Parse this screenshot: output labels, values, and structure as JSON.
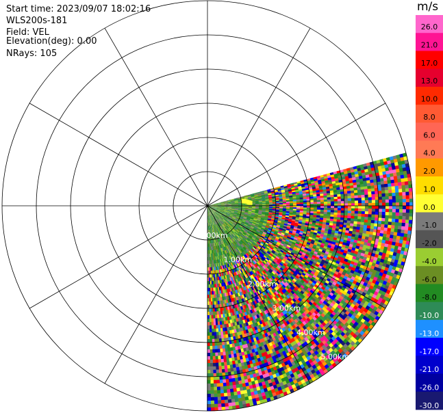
{
  "info": {
    "start_time": "Start time: 2023/09/07 18:02:16",
    "instrument": "WLS200s-181",
    "field": "Field: VEL",
    "elevation": "Elevation(deg): 0.00",
    "nrays": "NRays: 105"
  },
  "chart_data": {
    "type": "heatmap",
    "projection": "polar-ppi",
    "field": "VEL",
    "unit": "m/s",
    "colorbar_title": "m/s",
    "range_rings_km": [
      1,
      2,
      3,
      4,
      5,
      6
    ],
    "range_labels": [
      "0.00km",
      "1.00km",
      "2.00km",
      "3.00km",
      "4.00km",
      "5.00km"
    ],
    "scan_azimuth_start_deg": 90,
    "scan_azimuth_end_deg": 180,
    "nrays": 105,
    "max_range_km": 6,
    "colorbar": {
      "ticks": [
        "26.0",
        "21.0",
        "17.0",
        "13.0",
        "10.0",
        "8.0",
        "6.0",
        "4.0",
        "2.0",
        "1.0",
        "0.0",
        "-1.0",
        "-2.0",
        "-4.0",
        "-6.0",
        "-8.0",
        "-10.0",
        "-13.0",
        "-17.0",
        "-21.0",
        "-26.0",
        "-30.0"
      ],
      "colors": [
        "#ff66cc",
        "#ff1493",
        "#ff0000",
        "#e6002e",
        "#ff2a00",
        "#ff5a33",
        "#ff6655",
        "#ff7a55",
        "#ff9900",
        "#ffdd00",
        "#ffff33",
        "#7a7a7a",
        "#555555",
        "#9acd32",
        "#6b8e23",
        "#228b22",
        "#2e8b57",
        "#1e90ff",
        "#0000ff",
        "#0000cd",
        "#0000a0",
        "#191970"
      ]
    }
  }
}
